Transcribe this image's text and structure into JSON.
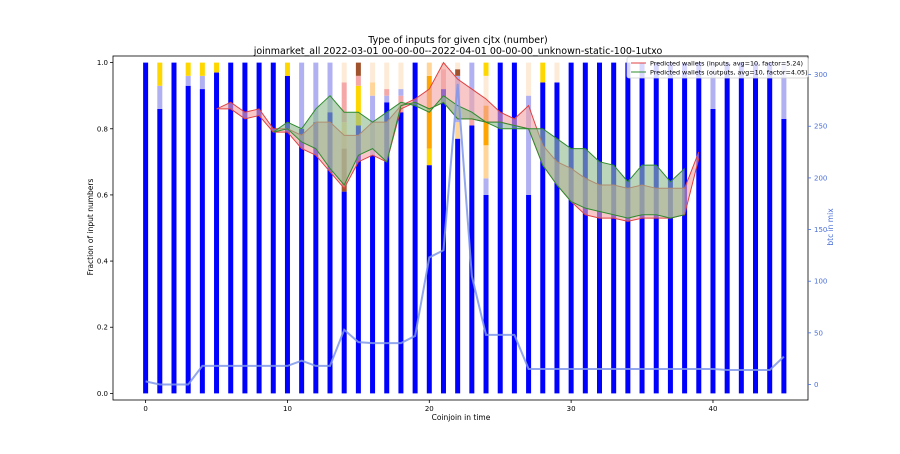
{
  "chart_data": {
    "type": "bar",
    "title": "Type of inputs for given cjtx (number)",
    "subtitle": "joinmarket_all 2022-03-01 00-00-00--2022-04-01 00-00-00_unknown-static-100-1utxo",
    "xlabel": "Coinjoin in time",
    "ylabel": "Fraction of input numbers",
    "y2label": "btc in mix",
    "xlim": [
      -2.3,
      46.7
    ],
    "ylim": [
      -0.02,
      1.02
    ],
    "y2lim": [
      -15,
      318
    ],
    "xticks": [
      0,
      10,
      20,
      30,
      40
    ],
    "yticks": [
      0.0,
      0.2,
      0.4,
      0.6,
      0.8,
      1.0
    ],
    "y2ticks": [
      0,
      50,
      100,
      150,
      200,
      250,
      300
    ],
    "legend_position": "top-right",
    "colors": {
      "fresh": "#0000ff",
      "fresh_light": "#b0b0f2",
      "yellow": "#ffd700",
      "light_orange": "#ffd59a",
      "orange": "#ffa500",
      "pink": "#f4a8a8",
      "brown": "#a0522d",
      "cream": "#fdebd7",
      "btc_line": "#7f96ea",
      "inputs_line": "#e04040",
      "inputs_fill": "#f4a6a6",
      "outputs_line": "#2e8b2e",
      "outputs_fill": "#8fbc8f"
    },
    "stacked_fractions": [
      [
        [
          1.0,
          "fresh"
        ]
      ],
      [
        [
          0.86,
          "fresh"
        ],
        [
          0.07,
          "fresh_light"
        ],
        [
          0.07,
          "yellow"
        ]
      ],
      [
        [
          1.0,
          "fresh"
        ]
      ],
      [
        [
          0.93,
          "fresh"
        ],
        [
          0.03,
          "fresh_light"
        ],
        [
          0.04,
          "yellow"
        ]
      ],
      [
        [
          0.92,
          "fresh"
        ],
        [
          0.04,
          "fresh_light"
        ],
        [
          0.04,
          "yellow"
        ]
      ],
      [
        [
          0.97,
          "fresh"
        ],
        [
          0.03,
          "yellow"
        ]
      ],
      [
        [
          1.0,
          "fresh"
        ]
      ],
      [
        [
          1.0,
          "fresh"
        ]
      ],
      [
        [
          1.0,
          "fresh"
        ]
      ],
      [
        [
          1.0,
          "fresh"
        ]
      ],
      [
        [
          0.96,
          "fresh"
        ],
        [
          0.04,
          "yellow"
        ]
      ],
      [
        [
          0.8,
          "fresh"
        ],
        [
          0.2,
          "fresh_light"
        ]
      ],
      [
        [
          0.82,
          "fresh"
        ],
        [
          0.18,
          "fresh_light"
        ]
      ],
      [
        [
          0.85,
          "fresh"
        ],
        [
          0.15,
          "fresh_light"
        ]
      ],
      [
        [
          0.61,
          "fresh"
        ],
        [
          0.13,
          "brown"
        ],
        [
          0.08,
          "light_orange"
        ],
        [
          0.12,
          "pink"
        ],
        [
          0.06,
          "cream"
        ]
      ],
      [
        [
          0.81,
          "fresh"
        ],
        [
          0.12,
          "yellow"
        ],
        [
          0.03,
          "pink"
        ],
        [
          0.04,
          "brown"
        ]
      ],
      [
        [
          0.72,
          "fresh"
        ],
        [
          0.18,
          "fresh_light"
        ],
        [
          0.04,
          "light_orange"
        ],
        [
          0.06,
          "cream"
        ]
      ],
      [
        [
          0.88,
          "fresh"
        ],
        [
          0.02,
          "fresh_light"
        ],
        [
          0.02,
          "pink"
        ],
        [
          0.08,
          "cream"
        ]
      ],
      [
        [
          0.85,
          "fresh"
        ],
        [
          0.05,
          "pink"
        ],
        [
          0.02,
          "fresh_light"
        ],
        [
          0.08,
          "cream"
        ]
      ],
      [
        [
          1.0,
          "fresh"
        ]
      ],
      [
        [
          0.69,
          "fresh"
        ],
        [
          0.05,
          "yellow"
        ],
        [
          0.22,
          "orange"
        ],
        [
          0.04,
          "light_orange"
        ]
      ],
      [
        [
          0.92,
          "fresh"
        ],
        [
          0.06,
          "pink"
        ],
        [
          0.02,
          "cream"
        ]
      ],
      [
        [
          0.77,
          "fresh"
        ],
        [
          0.05,
          "light_orange"
        ],
        [
          0.14,
          "fresh_light"
        ],
        [
          0.02,
          "brown"
        ],
        [
          0.02,
          "cream"
        ]
      ],
      [
        [
          0.81,
          "fresh"
        ],
        [
          0.03,
          "pink"
        ],
        [
          0.16,
          "fresh_light"
        ]
      ],
      [
        [
          0.6,
          "fresh"
        ],
        [
          0.05,
          "fresh_light"
        ],
        [
          0.1,
          "light_orange"
        ],
        [
          0.12,
          "orange"
        ],
        [
          0.09,
          "cream"
        ],
        [
          0.04,
          "yellow"
        ]
      ],
      [
        [
          1.0,
          "fresh"
        ]
      ],
      [
        [
          1.0,
          "fresh"
        ]
      ],
      [
        [
          0.6,
          "fresh"
        ],
        [
          0.3,
          "fresh_light"
        ],
        [
          0.1,
          "cream"
        ]
      ],
      [
        [
          0.94,
          "fresh"
        ],
        [
          0.06,
          "yellow"
        ]
      ],
      [
        [
          0.94,
          "fresh"
        ],
        [
          0.06,
          "cream"
        ]
      ],
      [
        [
          1.0,
          "fresh"
        ]
      ],
      [
        [
          1.0,
          "fresh"
        ]
      ],
      [
        [
          1.0,
          "fresh"
        ]
      ],
      [
        [
          1.0,
          "fresh"
        ]
      ],
      [
        [
          1.0,
          "fresh"
        ]
      ],
      [
        [
          1.0,
          "fresh"
        ]
      ],
      [
        [
          1.0,
          "fresh"
        ]
      ],
      [
        [
          1.0,
          "fresh"
        ]
      ],
      [
        [
          1.0,
          "fresh"
        ]
      ],
      [
        [
          1.0,
          "fresh"
        ]
      ],
      [
        [
          0.86,
          "fresh"
        ],
        [
          0.14,
          "fresh_light"
        ]
      ],
      [
        [
          1.0,
          "fresh"
        ]
      ],
      [
        [
          1.0,
          "fresh"
        ]
      ],
      [
        [
          1.0,
          "fresh"
        ]
      ],
      [
        [
          1.0,
          "fresh"
        ]
      ],
      [
        [
          0.83,
          "fresh"
        ],
        [
          0.17,
          "fresh_light"
        ]
      ]
    ],
    "series": [
      {
        "name": "Predicted wallets (inputs, avg=10, factor=5.24)",
        "x": [
          5,
          6,
          7,
          8,
          9,
          10,
          11,
          12,
          13,
          14,
          15,
          16,
          17,
          18,
          19,
          20,
          21,
          22,
          23,
          24,
          25,
          26,
          27,
          28,
          29,
          30,
          31,
          32,
          33,
          34,
          35,
          36,
          37,
          38,
          39
        ],
        "y_high": [
          0.86,
          0.88,
          0.85,
          0.86,
          0.8,
          0.8,
          0.78,
          0.82,
          0.82,
          0.78,
          0.78,
          0.82,
          0.82,
          0.87,
          0.89,
          0.92,
          1.0,
          0.95,
          0.92,
          0.89,
          0.85,
          0.83,
          0.87,
          0.75,
          0.7,
          0.68,
          0.65,
          0.63,
          0.63,
          0.62,
          0.63,
          0.62,
          0.62,
          0.62,
          0.73
        ],
        "y_low": [
          0.86,
          0.86,
          0.83,
          0.84,
          0.79,
          0.79,
          0.74,
          0.72,
          0.67,
          0.62,
          0.7,
          0.72,
          0.7,
          0.86,
          0.88,
          0.86,
          0.88,
          0.83,
          0.83,
          0.82,
          0.82,
          0.81,
          0.8,
          0.69,
          0.63,
          0.58,
          0.54,
          0.53,
          0.53,
          0.52,
          0.53,
          0.53,
          0.53,
          0.54,
          0.71
        ]
      },
      {
        "name": "Predicted wallets (outputs, avg=10, factor=4.05)",
        "x": [
          9,
          10,
          11,
          12,
          13,
          14,
          15,
          16,
          17,
          18,
          19,
          20,
          21,
          22,
          23,
          24,
          25,
          26,
          27,
          28,
          29,
          30,
          31,
          32,
          33,
          34,
          35,
          36,
          37,
          38
        ],
        "y_high": [
          0.79,
          0.82,
          0.8,
          0.86,
          0.9,
          0.85,
          0.85,
          0.82,
          0.85,
          0.88,
          0.87,
          0.85,
          0.9,
          0.87,
          0.85,
          0.82,
          0.8,
          0.8,
          0.8,
          0.8,
          0.77,
          0.74,
          0.74,
          0.7,
          0.69,
          0.64,
          0.69,
          0.69,
          0.64,
          0.68
        ],
        "y_low": [
          0.79,
          0.8,
          0.76,
          0.74,
          0.68,
          0.63,
          0.72,
          0.74,
          0.7,
          0.87,
          0.88,
          0.86,
          0.88,
          0.83,
          0.83,
          0.82,
          0.82,
          0.81,
          0.8,
          0.69,
          0.63,
          0.58,
          0.56,
          0.55,
          0.54,
          0.53,
          0.54,
          0.54,
          0.53,
          0.54
        ]
      },
      {
        "name": "btc in mix",
        "axis": "right",
        "x": [
          0,
          1,
          2,
          3,
          4,
          5,
          6,
          7,
          8,
          9,
          10,
          11,
          12,
          13,
          14,
          15,
          16,
          17,
          18,
          19,
          20,
          21,
          22,
          23,
          24,
          25,
          26,
          27,
          28,
          29,
          30,
          31,
          32,
          33,
          34,
          35,
          36,
          37,
          38,
          39,
          40,
          41,
          42,
          43,
          44,
          45
        ],
        "y": [
          3,
          0,
          0,
          0,
          18,
          18,
          18,
          18,
          18,
          18,
          18,
          23,
          18,
          18,
          53,
          41,
          40,
          40,
          40,
          47,
          123,
          130,
          291,
          105,
          48,
          48,
          48,
          15,
          15,
          15,
          15,
          15,
          15,
          15,
          15,
          15,
          15,
          15,
          15,
          15,
          15,
          14,
          14,
          14,
          14,
          27
        ]
      }
    ]
  }
}
